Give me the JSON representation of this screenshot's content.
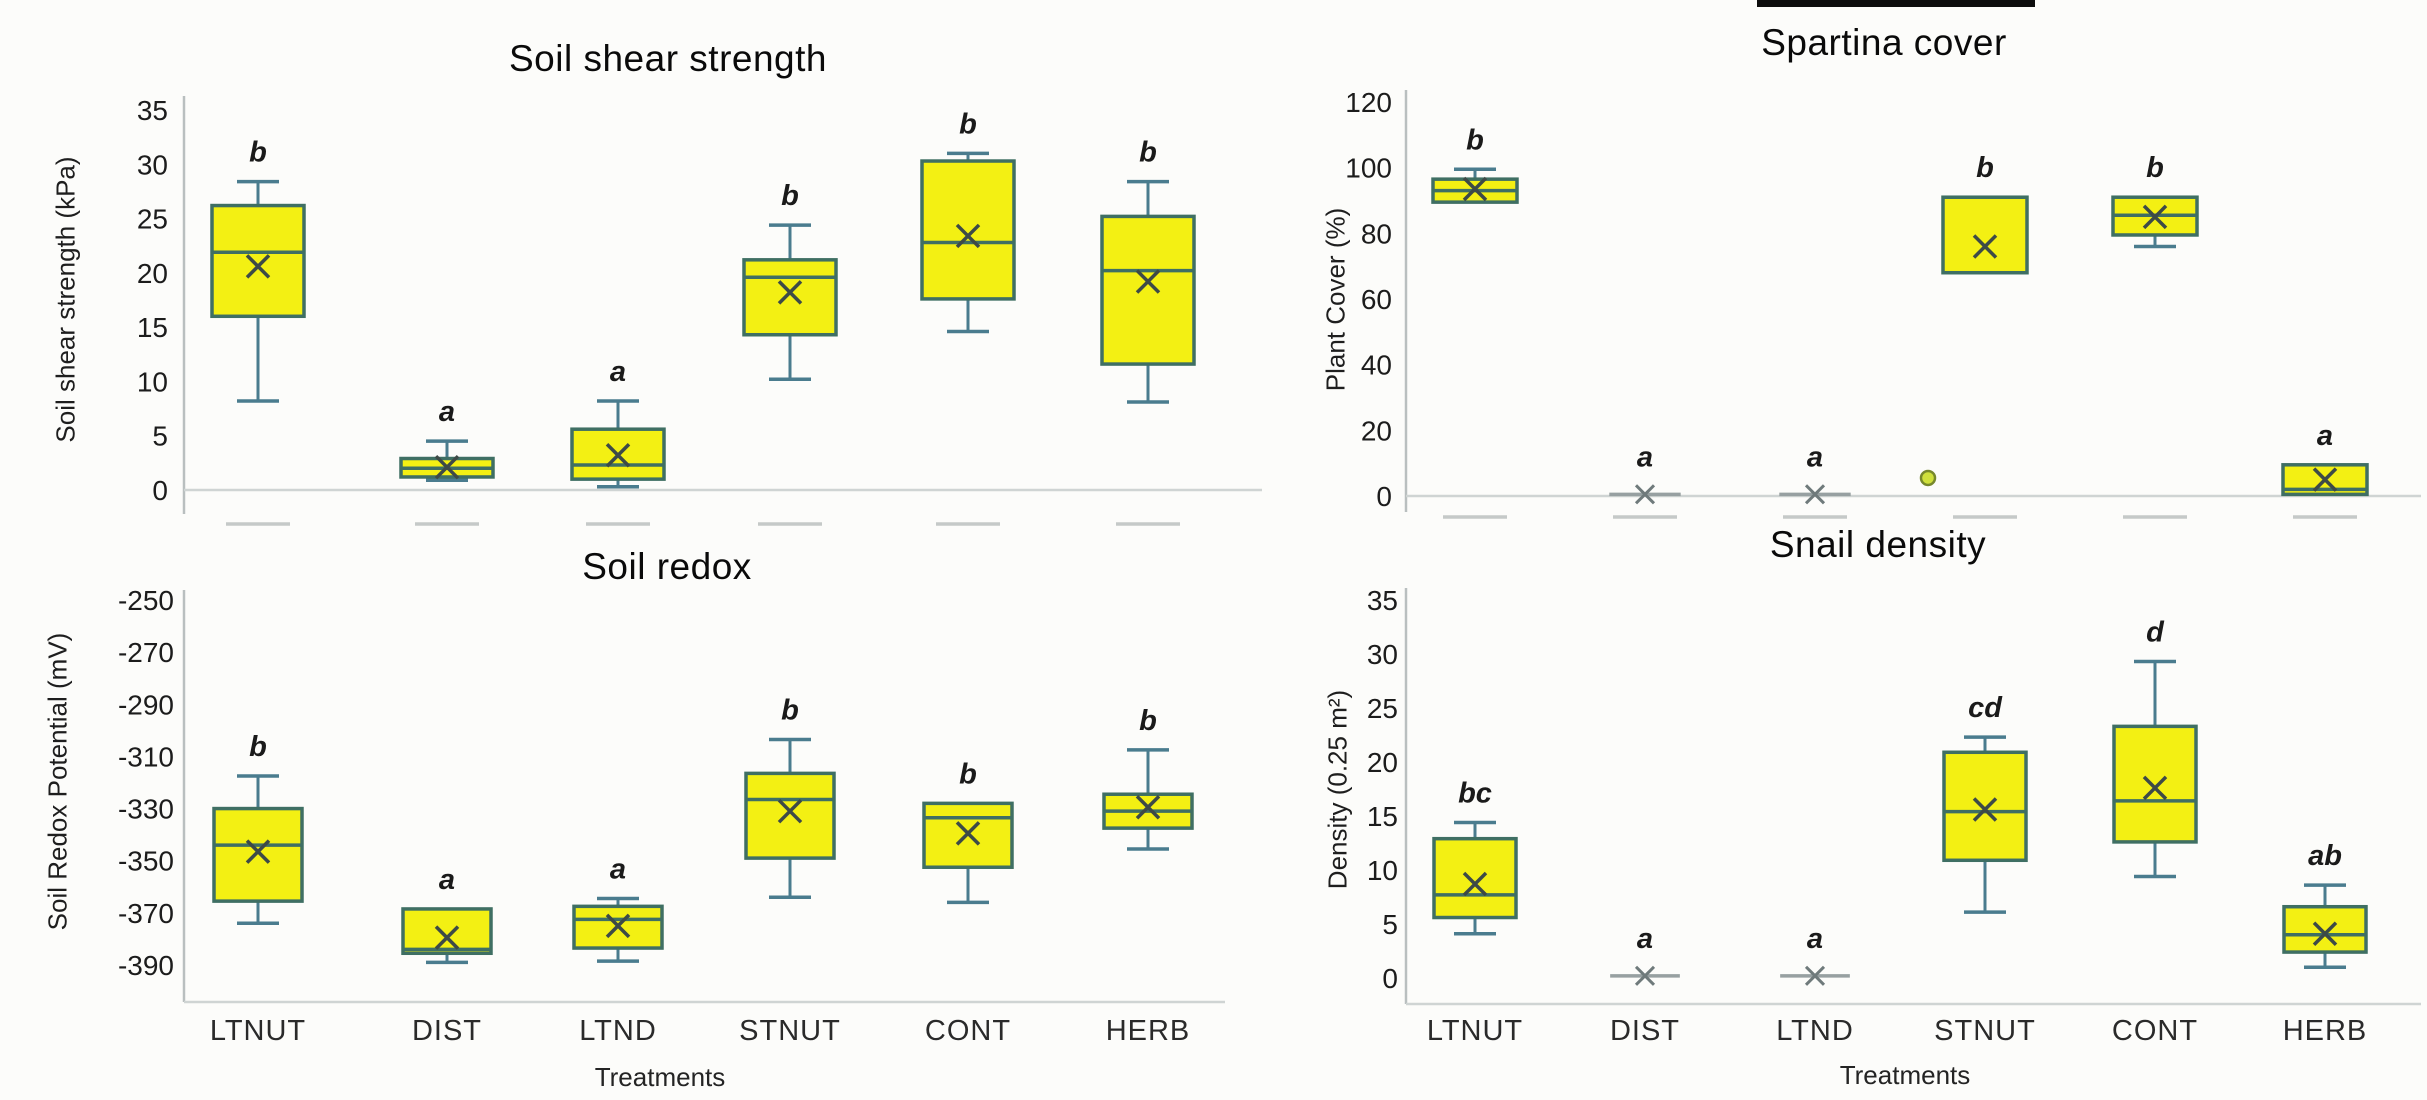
{
  "figure": {
    "treatments_axis_label": "Treatments",
    "colors": {
      "box_fill": "#f3f013",
      "box_border": "#3f6f63",
      "whisker": "#4a7c8e",
      "mean_marker": "#3d4a47",
      "flat_line": "#97a0a1",
      "flat_mean_marker": "#6f7a7b",
      "axis_line": "#b9bfbf",
      "grid_line": "#cfd4d3",
      "tick_text": "#1c1c1c",
      "letter_text": "#1a1a1a",
      "dash_artifact": "#c5c9c8",
      "outlier_fill": "#cfe03c",
      "outlier_border": "#77882c",
      "artifact_line": "#0d0d0d"
    }
  },
  "chart_data": [
    {
      "type": "box",
      "title": "Soil shear strength",
      "ylabel": "Soil shear strength (kPa)",
      "xlabel": null,
      "ylim": [
        0,
        35
      ],
      "yticks": [
        35,
        30,
        25,
        20,
        15,
        10,
        5,
        0
      ],
      "categories": [
        "LTNUT",
        "DIST",
        "LTND",
        "STNUT",
        "CONT",
        "HERB"
      ],
      "x_labels_visible": false,
      "series": [
        {
          "category": "LTNUT",
          "low": 8.2,
          "q1": 16,
          "median": 21.9,
          "q3": 26.2,
          "high": 28.4,
          "mean": 20.6,
          "letter": "b"
        },
        {
          "category": "DIST",
          "low": 0.9,
          "q1": 1.2,
          "median": 2.0,
          "q3": 2.9,
          "high": 4.5,
          "mean": 2.1,
          "letter": "a"
        },
        {
          "category": "LTND",
          "low": 0.3,
          "q1": 1.0,
          "median": 2.3,
          "q3": 5.6,
          "high": 8.2,
          "mean": 3.2,
          "letter": "a"
        },
        {
          "category": "STNUT",
          "low": 10.2,
          "q1": 14.3,
          "median": 19.6,
          "q3": 21.2,
          "high": 24.4,
          "mean": 18.2,
          "letter": "b"
        },
        {
          "category": "CONT",
          "low": 14.6,
          "q1": 17.6,
          "median": 22.8,
          "q3": 30.3,
          "high": 31.0,
          "mean": 23.4,
          "letter": "b"
        },
        {
          "category": "HERB",
          "low": 8.1,
          "q1": 11.6,
          "median": 20.2,
          "q3": 25.2,
          "high": 28.4,
          "mean": 19.2,
          "letter": "b"
        }
      ]
    },
    {
      "type": "box",
      "title": "Spartina cover",
      "ylabel": "Plant Cover (%)",
      "xlabel": null,
      "ylim": [
        0,
        120
      ],
      "yticks": [
        120,
        100,
        80,
        60,
        40,
        20,
        0
      ],
      "categories": [
        "LTNUT",
        "DIST",
        "LTND",
        "STNUT",
        "CONT",
        "HERB"
      ],
      "x_labels_visible": false,
      "series": [
        {
          "category": "LTNUT",
          "low": null,
          "q1": 89.5,
          "median": 93,
          "q3": 96.5,
          "high": 99.5,
          "mean": 93.5,
          "letter": "b"
        },
        {
          "category": "DIST",
          "flat": 0.5,
          "mean": 0.5,
          "letter": "a"
        },
        {
          "category": "LTND",
          "flat": 0.5,
          "mean": 0.5,
          "letter": "a"
        },
        {
          "category": "STNUT",
          "low": null,
          "q1": 68,
          "median": 91,
          "q3": 91,
          "high": null,
          "mean": 76,
          "letter": "b",
          "outliers": [
            {
              "value": 5.5,
              "dx": -57
            }
          ]
        },
        {
          "category": "CONT",
          "low": 76,
          "q1": 79.5,
          "median": 85.5,
          "q3": 91,
          "high": null,
          "mean": 85,
          "letter": "b"
        },
        {
          "category": "HERB",
          "low": null,
          "q1": 0.5,
          "median": 2,
          "q3": 9.5,
          "high": null,
          "mean": 5,
          "letter": "a"
        }
      ]
    },
    {
      "type": "box",
      "title": "Soil redox",
      "ylabel": "Soil Redox Potential (mV)",
      "xlabel": "Treatments",
      "ylim": [
        -390,
        -250
      ],
      "yticks": [
        -250,
        -270,
        -290,
        -310,
        -330,
        -350,
        -370,
        -390
      ],
      "categories": [
        "LTNUT",
        "DIST",
        "LTND",
        "STNUT",
        "CONT",
        "HERB"
      ],
      "x_labels_visible": true,
      "series": [
        {
          "category": "LTNUT",
          "low": -374,
          "q1": -365.5,
          "median": -344,
          "q3": -330,
          "high": -317.5,
          "mean": -346.5,
          "letter": "b"
        },
        {
          "category": "DIST",
          "low": -389,
          "q1": -385.5,
          "median": -384,
          "q3": -368.5,
          "high": null,
          "mean": -379.5,
          "letter": "a"
        },
        {
          "category": "LTND",
          "low": -388.5,
          "q1": -383.5,
          "median": -372.5,
          "q3": -367.5,
          "high": -364.5,
          "mean": -375,
          "letter": "a"
        },
        {
          "category": "STNUT",
          "low": -364,
          "q1": -349,
          "median": -326.5,
          "q3": -316.5,
          "high": -303.5,
          "mean": -331,
          "letter": "b"
        },
        {
          "category": "CONT",
          "low": -366,
          "q1": -352.5,
          "median": -333.5,
          "q3": -328,
          "high": null,
          "mean": -339.5,
          "letter": "b"
        },
        {
          "category": "HERB",
          "low": -345.5,
          "q1": -337.5,
          "median": -331,
          "q3": -324.5,
          "high": -307.5,
          "mean": -329.5,
          "letter": "b"
        }
      ]
    },
    {
      "type": "box",
      "title": "Snail density",
      "ylabel": "Density (0.25 m²)",
      "xlabel": "Treatments",
      "ylim": [
        0,
        35
      ],
      "yticks": [
        35,
        30,
        25,
        20,
        15,
        10,
        5,
        0
      ],
      "categories": [
        "LTNUT",
        "DIST",
        "LTND",
        "STNUT",
        "CONT",
        "HERB"
      ],
      "x_labels_visible": true,
      "series": [
        {
          "category": "LTNUT",
          "low": 4.1,
          "q1": 5.6,
          "median": 7.7,
          "q3": 12.9,
          "high": 14.4,
          "mean": 8.7,
          "letter": "bc"
        },
        {
          "category": "DIST",
          "flat": 0.2,
          "mean": 0.2,
          "letter": "a"
        },
        {
          "category": "LTND",
          "flat": 0.2,
          "mean": 0.2,
          "letter": "a"
        },
        {
          "category": "STNUT",
          "low": 6.1,
          "q1": 10.9,
          "median": 15.4,
          "q3": 20.9,
          "high": 22.3,
          "mean": 15.6,
          "letter": "cd"
        },
        {
          "category": "CONT",
          "low": 9.4,
          "q1": 12.6,
          "median": 16.4,
          "q3": 23.3,
          "high": 29.3,
          "mean": 17.6,
          "letter": "d"
        },
        {
          "category": "HERB",
          "low": 1.0,
          "q1": 2.4,
          "median": 4.0,
          "q3": 6.6,
          "high": 8.6,
          "mean": 4.1,
          "letter": "ab"
        }
      ]
    }
  ]
}
